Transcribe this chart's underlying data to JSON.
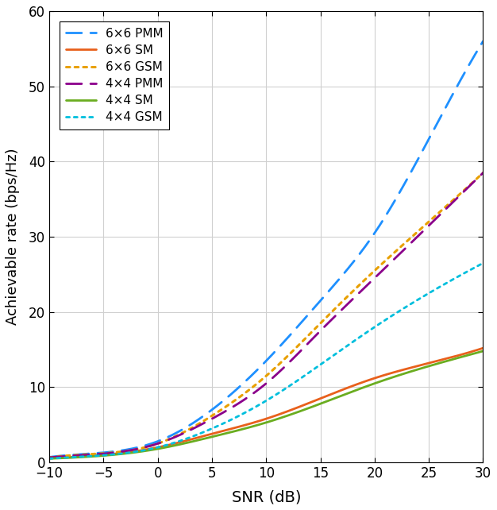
{
  "title": "",
  "xlabel": "SNR (dB)",
  "ylabel": "Achievable rate (bps/Hz)",
  "snr_range": [
    -10,
    30
  ],
  "ylim": [
    0,
    60
  ],
  "yticks": [
    0,
    10,
    20,
    30,
    40,
    50,
    60
  ],
  "xticks": [
    -10,
    -5,
    0,
    5,
    10,
    15,
    20,
    25,
    30
  ],
  "series": [
    {
      "label": "6×6 PMM",
      "color": "#1E90FF",
      "linestyle": "dashed",
      "linewidth": 2.0,
      "key": "6x6_PMM"
    },
    {
      "label": "6×6 SM",
      "color": "#E8601C",
      "linestyle": "solid",
      "linewidth": 2.0,
      "key": "6x6_SM"
    },
    {
      "label": "6×6 GSM",
      "color": "#E8A000",
      "linestyle": "dotted",
      "linewidth": 2.2,
      "key": "6x6_GSM"
    },
    {
      "label": "4×4 PMM",
      "color": "#8B008B",
      "linestyle": "dashed",
      "linewidth": 2.0,
      "key": "4x4_PMM"
    },
    {
      "label": "4×4 SM",
      "color": "#6AAD20",
      "linestyle": "solid",
      "linewidth": 2.0,
      "key": "4x4_SM"
    },
    {
      "label": "4×4 GSM",
      "color": "#00BFDD",
      "linestyle": "dotted",
      "linewidth": 2.0,
      "key": "4x4_GSM"
    }
  ],
  "curves_keypoints": {
    "6x6_PMM": {
      "snr": [
        -10,
        -5,
        0,
        5,
        10,
        15,
        20,
        25,
        30
      ],
      "rate": [
        0.7,
        1.3,
        2.8,
        7.0,
        13.5,
        21.5,
        30.5,
        43.0,
        56.0
      ]
    },
    "6x6_SM": {
      "snr": [
        -10,
        -5,
        0,
        5,
        10,
        15,
        20,
        25,
        30
      ],
      "rate": [
        0.55,
        1.0,
        2.0,
        3.8,
        5.8,
        8.5,
        11.2,
        13.2,
        15.2
      ]
    },
    "6x6_GSM": {
      "snr": [
        -10,
        -5,
        0,
        5,
        10,
        15,
        20,
        25,
        30
      ],
      "rate": [
        0.65,
        1.2,
        2.5,
        6.2,
        11.5,
        18.5,
        25.5,
        32.0,
        38.5
      ]
    },
    "4x4_PMM": {
      "snr": [
        -10,
        -5,
        0,
        5,
        10,
        15,
        20,
        25,
        30
      ],
      "rate": [
        0.65,
        1.15,
        2.5,
        5.8,
        10.5,
        17.5,
        24.5,
        31.5,
        38.5
      ]
    },
    "4x4_SM": {
      "snr": [
        -10,
        -5,
        0,
        5,
        10,
        15,
        20,
        25,
        30
      ],
      "rate": [
        0.5,
        0.9,
        1.8,
        3.4,
        5.3,
        7.8,
        10.5,
        12.8,
        14.8
      ]
    },
    "4x4_GSM": {
      "snr": [
        -10,
        -5,
        0,
        5,
        10,
        15,
        20,
        25,
        30
      ],
      "rate": [
        0.5,
        0.95,
        2.0,
        4.5,
        8.2,
        13.0,
        18.0,
        22.5,
        26.5
      ]
    }
  },
  "background_color": "#ffffff",
  "grid_color": "#d0d0d0",
  "legend_loc": "upper left"
}
